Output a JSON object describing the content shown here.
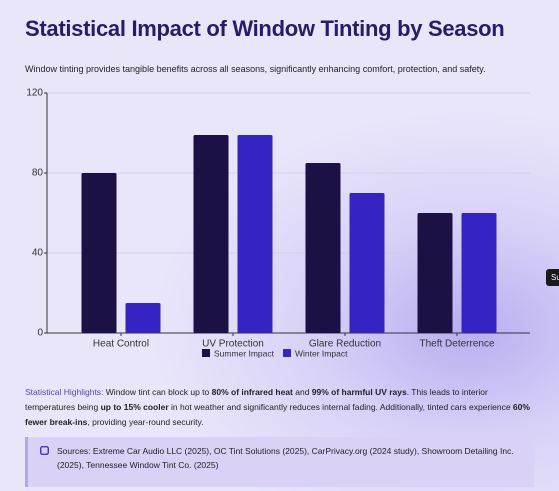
{
  "chart_data": {
    "type": "bar",
    "title": "Statistical Impact of Window Tinting by Season",
    "subtitle": "Window tinting provides tangible benefits across all seasons, significantly enhancing comfort, protection, and safety.",
    "categories": [
      "Heat Control",
      "UV Protection",
      "Glare Reduction",
      "Theft Deterrence"
    ],
    "series": [
      {
        "name": "Summer Impact",
        "color": "#1c1045",
        "values": [
          80,
          99,
          85,
          60
        ]
      },
      {
        "name": "Winter Impact",
        "color": "#3524c4",
        "values": [
          15,
          99,
          70,
          60
        ]
      }
    ],
    "ylim": [
      0,
      120
    ],
    "yticks": [
      0,
      40,
      80,
      120
    ],
    "grid": true
  },
  "highlights": [
    {
      "text": "Statistical Highlights:",
      "style": "label"
    },
    {
      "text": " Window tint can block up to ",
      "style": "normal"
    },
    {
      "text": "80% of infrared heat",
      "style": "bold"
    },
    {
      "text": " and ",
      "style": "normal"
    },
    {
      "text": "99% of harmful UV rays",
      "style": "bold"
    },
    {
      "text": ". This leads to interior temperatures being ",
      "style": "normal"
    },
    {
      "text": "up to 15% cooler",
      "style": "bold"
    },
    {
      "text": " in hot weather and significantly reduces internal fading. Additionally, tinted cars experience ",
      "style": "normal"
    },
    {
      "text": "60% fewer break-ins",
      "style": "bold"
    },
    {
      "text": ", providing year-round security.",
      "style": "normal"
    }
  ],
  "sources": "Sources: Extreme Car Audio LLC (2025), OC Tint Solutions (2025), CarPrivacy.org (2024 study), Showroom Detailing Inc. (2025), Tennessee Window Tint Co. (2025)",
  "tooltip": "Su"
}
